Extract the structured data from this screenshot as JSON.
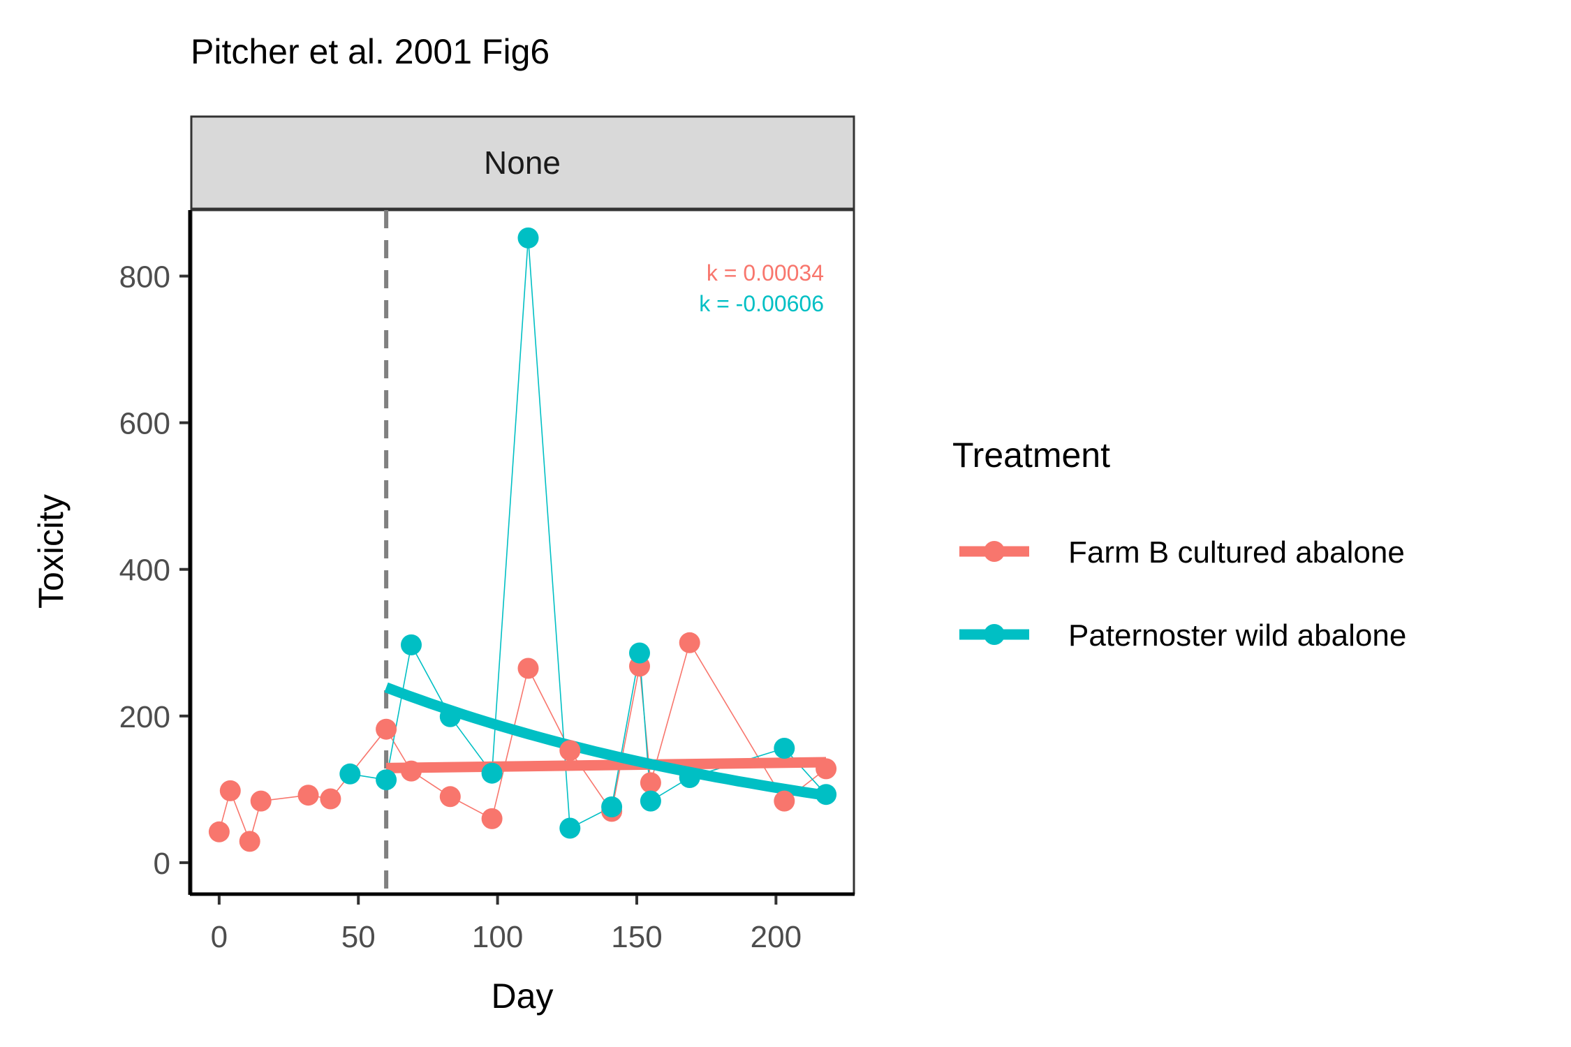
{
  "chart_data": {
    "type": "line",
    "title": "Pitcher et al. 2001 Fig6",
    "facet_label": "None",
    "xlabel": "Day",
    "ylabel": "Toxicity",
    "xlim": [
      -10,
      228
    ],
    "ylim": [
      -42,
      890
    ],
    "x_ticks": [
      0,
      50,
      100,
      150,
      200
    ],
    "y_ticks": [
      0,
      200,
      400,
      600,
      800
    ],
    "vline_x": 60,
    "legend_title": "Treatment",
    "legend_position": "right",
    "annotations": [
      {
        "text": "k = 0.00034",
        "series": 0
      },
      {
        "text": "k = -0.00606",
        "series": 1
      }
    ],
    "series": [
      {
        "name": "Farm B cultured abalone",
        "color": "#F8766D",
        "x": [
          0,
          4,
          11,
          15,
          32,
          40,
          60,
          69,
          83,
          98,
          111,
          126,
          141,
          151,
          155,
          169,
          203,
          218
        ],
        "y": [
          42,
          98,
          29,
          84,
          92,
          87,
          182,
          125,
          90,
          60,
          265,
          153,
          70,
          268,
          109,
          300,
          84,
          128
        ],
        "fit_x": [
          60,
          218
        ],
        "fit_y": [
          129,
          137
        ]
      },
      {
        "name": "Paternoster wild abalone",
        "color": "#00BFC4",
        "x": [
          47,
          60,
          69,
          83,
          98,
          111,
          126,
          141,
          151,
          155,
          169,
          203,
          218
        ],
        "y": [
          121,
          113,
          297,
          199,
          122,
          852,
          47,
          76,
          286,
          84,
          116,
          156,
          93
        ],
        "fit_x": [
          60,
          218
        ],
        "fit_y": [
          239,
          91
        ],
        "fit_k": -0.00606
      }
    ]
  }
}
